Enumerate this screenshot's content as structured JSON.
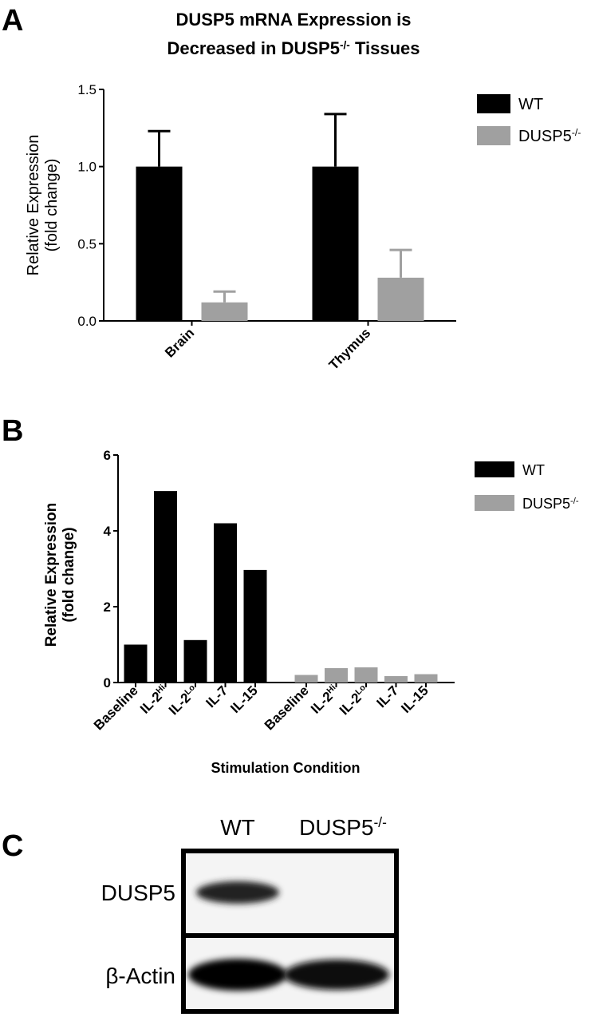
{
  "chart_data": [
    {
      "type": "bar",
      "panel": "A",
      "title": [
        [
          {
            "text": "DUSP5 mRNA Expression is"
          }
        ],
        [
          {
            "text": "Decreased in DUSP5"
          },
          {
            "text": "-/-",
            "sup": true
          },
          {
            "text": " Tissues"
          }
        ]
      ],
      "ylabel": [
        "Relative Expression",
        "(fold change)"
      ],
      "categories": [
        "Brain",
        "Thymus"
      ],
      "series": [
        {
          "name": "WT",
          "color": "#000000",
          "values": [
            1.0,
            1.0
          ],
          "errors": [
            0.23,
            0.34
          ]
        },
        {
          "name": [
            {
              "text": "DUSP5"
            },
            {
              "text": "-/-",
              "sup": true
            }
          ],
          "color": "#a0a0a0",
          "values": [
            0.12,
            0.28
          ],
          "errors": [
            0.07,
            0.18
          ]
        }
      ],
      "ylim": [
        0,
        1.5
      ],
      "yticks": [
        {
          "value": 0,
          "label": "0.0"
        },
        0.5,
        {
          "value": 1,
          "label": "1.0"
        },
        1.5
      ]
    },
    {
      "type": "bar",
      "panel": "B",
      "ylabel": [
        "Relative Expression",
        "(fold change)"
      ],
      "xlabel": "Stimulation Condition",
      "categories": [
        "Baseline",
        [
          {
            "text": "IL-2"
          },
          {
            "text": "Hi",
            "sup": true
          }
        ],
        [
          {
            "text": "IL-2"
          },
          {
            "text": "Lo",
            "sup": true
          }
        ],
        "IL-7",
        "IL-15",
        "Baseline",
        [
          {
            "text": "IL-2"
          },
          {
            "text": "Hi",
            "sup": true
          }
        ],
        [
          {
            "text": "IL-2"
          },
          {
            "text": "Lo",
            "sup": true
          }
        ],
        "IL-7",
        "IL-15"
      ],
      "series": [
        {
          "name": "WT",
          "color": "#000000",
          "values": [
            1.0,
            5.05,
            1.12,
            4.2,
            2.97,
            null,
            null,
            null,
            null,
            null
          ]
        },
        {
          "name": [
            {
              "text": "DUSP5"
            },
            {
              "text": "-/-",
              "sup": true
            }
          ],
          "color": "#a0a0a0",
          "values": [
            null,
            null,
            null,
            null,
            null,
            0.2,
            0.38,
            0.4,
            0.17,
            0.22
          ]
        }
      ],
      "ylim": [
        0,
        6
      ],
      "yticks": [
        0,
        2,
        4,
        6
      ]
    }
  ],
  "blot": {
    "panel": "C",
    "columns": [
      "WT",
      [
        {
          "text": "DUSP5"
        },
        {
          "text": "-/-",
          "sup": true
        }
      ]
    ],
    "rows": [
      "DUSP5",
      "β-Actin"
    ]
  }
}
